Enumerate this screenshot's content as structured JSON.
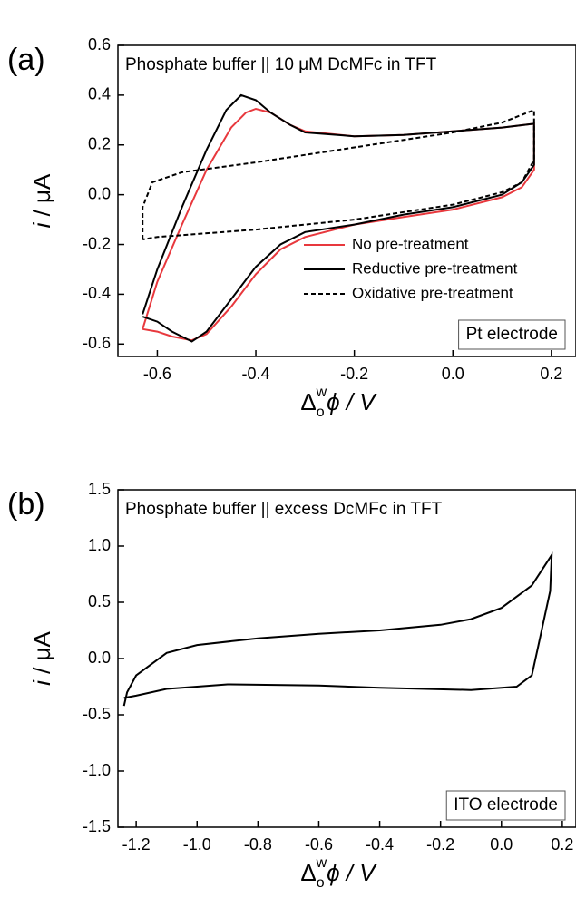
{
  "chart_data": [
    {
      "type": "line",
      "panel": "(a)",
      "annotation": "Phosphate buffer || 10 μM DcMFc in TFT",
      "box_annotation": "Pt electrode",
      "xlabel": [
        "Δ",
        "o",
        "w",
        "ϕ / V"
      ],
      "ylabel": [
        "i",
        " / μA"
      ],
      "xlim": [
        -0.68,
        0.25
      ],
      "ylim": [
        -0.65,
        0.6
      ],
      "xticks": [
        -0.6,
        -0.4,
        -0.2,
        {
          "value": 0,
          "label": "0.0"
        },
        0.2
      ],
      "yticks": [
        -0.6,
        -0.4,
        -0.2,
        {
          "value": 0,
          "label": "0.0"
        },
        0.2,
        0.4,
        0.6
      ],
      "legend": "right",
      "series": [
        {
          "name": "No pre-treatment",
          "color": "#e8383d",
          "dash": false,
          "x": [
            -0.63,
            -0.6,
            -0.55,
            -0.5,
            -0.45,
            -0.42,
            -0.4,
            -0.37,
            -0.33,
            -0.3,
            -0.2,
            -0.1,
            0,
            0.1,
            0.165,
            0.165,
            0.14,
            0.1,
            0,
            -0.1,
            -0.2,
            -0.3,
            -0.35,
            -0.4,
            -0.45,
            -0.5,
            -0.53,
            -0.57,
            -0.6,
            -0.63
          ],
          "values": [
            -0.54,
            -0.35,
            -0.12,
            0.1,
            0.27,
            0.33,
            0.345,
            0.33,
            0.28,
            0.255,
            0.235,
            0.24,
            0.255,
            0.27,
            0.285,
            0.1,
            0.03,
            -0.01,
            -0.06,
            -0.09,
            -0.12,
            -0.17,
            -0.22,
            -0.32,
            -0.45,
            -0.56,
            -0.585,
            -0.57,
            -0.55,
            -0.54
          ]
        },
        {
          "name": "Reductive pre-treatment",
          "color": "#000000",
          "dash": false,
          "x": [
            -0.63,
            -0.6,
            -0.55,
            -0.5,
            -0.46,
            -0.43,
            -0.4,
            -0.37,
            -0.33,
            -0.3,
            -0.2,
            -0.1,
            0,
            0.1,
            0.165,
            0.165,
            0.14,
            0.1,
            0,
            -0.1,
            -0.2,
            -0.3,
            -0.35,
            -0.4,
            -0.45,
            -0.5,
            -0.53,
            -0.57,
            -0.6,
            -0.63
          ],
          "values": [
            -0.48,
            -0.3,
            -0.05,
            0.18,
            0.34,
            0.4,
            0.38,
            0.33,
            0.28,
            0.25,
            0.235,
            0.24,
            0.255,
            0.27,
            0.285,
            0.12,
            0.05,
            0,
            -0.05,
            -0.08,
            -0.12,
            -0.15,
            -0.2,
            -0.29,
            -0.42,
            -0.55,
            -0.59,
            -0.55,
            -0.51,
            -0.49
          ]
        },
        {
          "name": "Oxidative pre-treatment",
          "color": "#000000",
          "dash": true,
          "x": [
            -0.63,
            -0.63,
            -0.61,
            -0.55,
            -0.4,
            -0.2,
            0,
            0.1,
            0.165,
            0.165,
            0.14,
            0.1,
            0,
            -0.2,
            -0.4,
            -0.6,
            -0.63
          ],
          "values": [
            -0.18,
            -0.05,
            0.05,
            0.09,
            0.13,
            0.19,
            0.25,
            0.29,
            0.34,
            0.14,
            0.05,
            0.01,
            -0.04,
            -0.1,
            -0.14,
            -0.17,
            -0.18
          ]
        }
      ]
    },
    {
      "type": "line",
      "panel": "(b)",
      "annotation": "Phosphate buffer || excess DcMFc in TFT",
      "box_annotation": "ITO electrode",
      "xlabel": [
        "Δ",
        "o",
        "w",
        "ϕ  / V"
      ],
      "ylabel": [
        "i",
        " / μA"
      ],
      "xlim": [
        -1.26,
        0.245
      ],
      "ylim": [
        -1.5,
        1.5
      ],
      "xticks": [
        -1.2,
        {
          "value": -1,
          "label": "-1.0"
        },
        -0.8,
        -0.6,
        -0.4,
        -0.2,
        {
          "value": 0,
          "label": "0.0"
        },
        0.2
      ],
      "yticks": [
        -1.5,
        {
          "value": -1,
          "label": "-1.0"
        },
        -0.5,
        {
          "value": 0,
          "label": "0.0"
        },
        0.5,
        {
          "value": 1,
          "label": "1.0"
        },
        1.5
      ],
      "series": [
        {
          "color": "#000000",
          "dash": false,
          "x": [
            -1.24,
            -1.23,
            -1.2,
            -1.1,
            -1.0,
            -0.8,
            -0.6,
            -0.4,
            -0.2,
            -0.1,
            0,
            0.1,
            0.165,
            0.16,
            0.12,
            0.1,
            0.05,
            -0.1,
            -0.4,
            -0.6,
            -0.9,
            -1.1,
            -1.2,
            -1.24
          ],
          "values": [
            -0.42,
            -0.3,
            -0.15,
            0.05,
            0.12,
            0.18,
            0.22,
            0.25,
            0.3,
            0.35,
            0.45,
            0.65,
            0.92,
            0.6,
            0.1,
            -0.15,
            -0.25,
            -0.28,
            -0.26,
            -0.24,
            -0.23,
            -0.27,
            -0.33,
            -0.35
          ]
        }
      ]
    }
  ]
}
